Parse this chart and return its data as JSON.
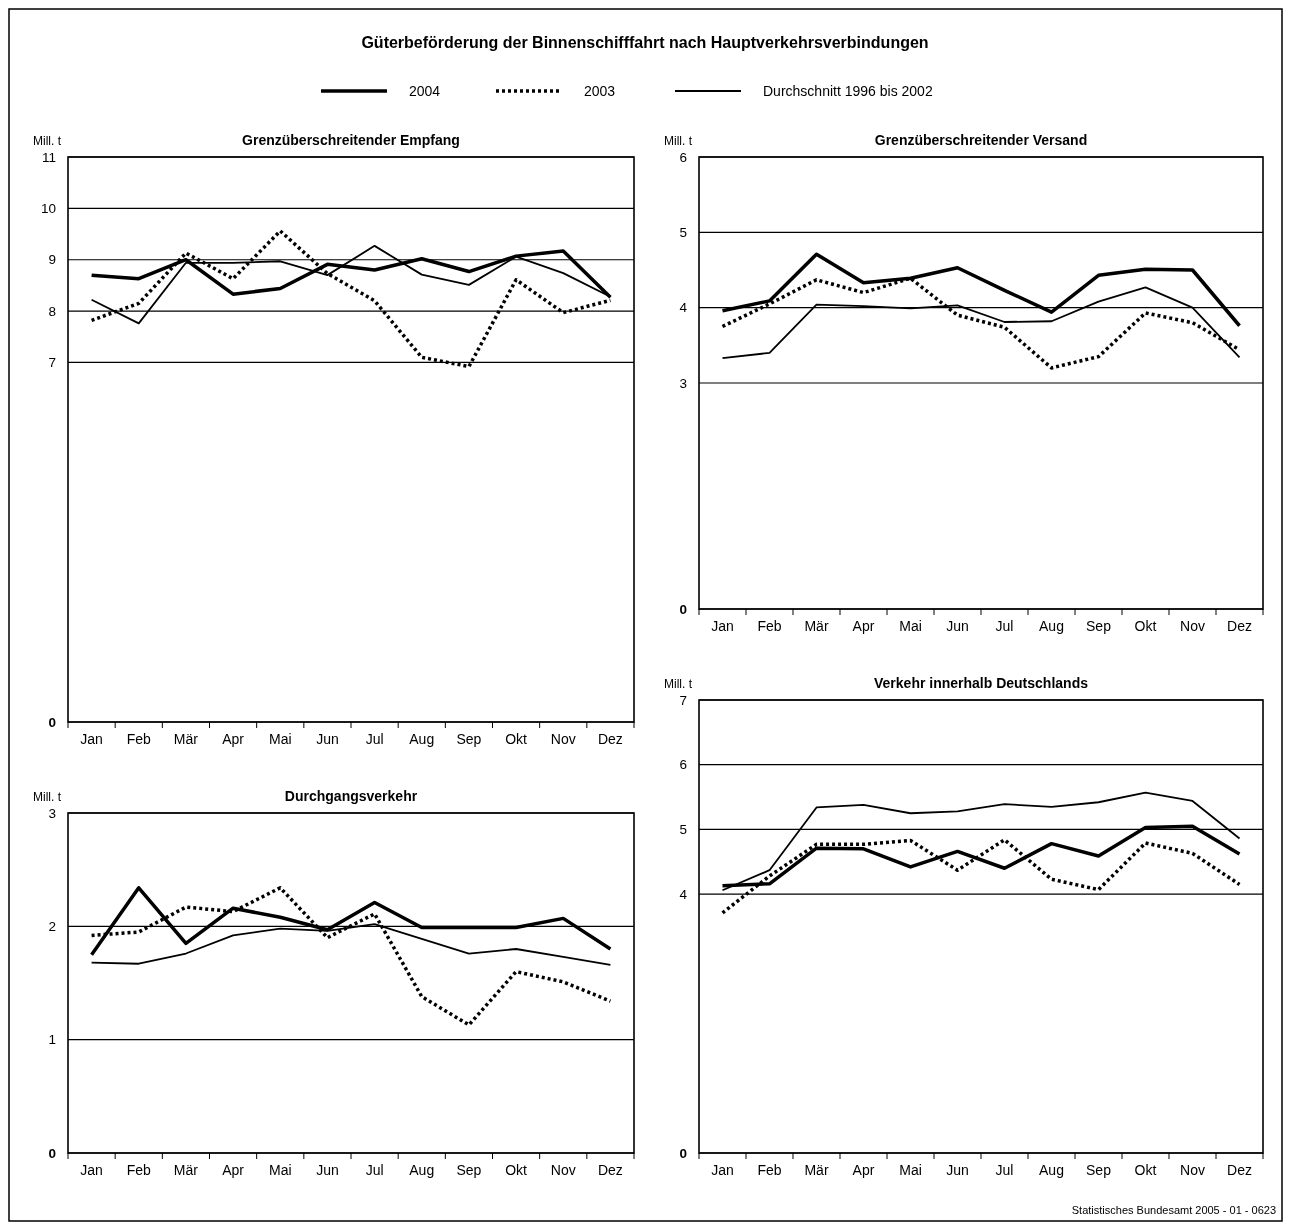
{
  "chart_data": [
    {
      "type": "line",
      "title": "Grenzüberschreitender Empfang",
      "ylabel": "Mill. t",
      "annotations": [
        "Güterbeförderung der Binnenschifffahrt nach Hauptverkehrsverbindungen",
        "Statistisches Bundesamt 2005 - 01 - 0623"
      ],
      "legend": "top",
      "grid": "y",
      "categories": [
        "Jan",
        "Feb",
        "Mär",
        "Apr",
        "Mai",
        "Jun",
        "Jul",
        "Aug",
        "Sep",
        "Okt",
        "Nov",
        "Dez"
      ],
      "ylim": [
        0,
        11
      ],
      "yticks": [
        0,
        7,
        8,
        9,
        10,
        11
      ],
      "series": [
        {
          "name": "2004",
          "color": "#000000",
          "line_style": "solid",
          "values": [
            8.7,
            8.63,
            9.0,
            8.33,
            8.44,
            8.91,
            8.8,
            9.02,
            8.77,
            9.07,
            9.17,
            8.27
          ]
        },
        {
          "name": "2003",
          "color": "#000000",
          "line_style": "dotted",
          "values": [
            7.82,
            8.15,
            9.13,
            8.63,
            9.56,
            8.73,
            8.2,
            7.1,
            6.92,
            8.61,
            7.97,
            8.21
          ]
        },
        {
          "name": "Durchschnitt 1996 bis 2002",
          "color": "#000000",
          "line_style": "solid",
          "values": [
            8.22,
            7.76,
            8.94,
            8.94,
            8.97,
            8.7,
            9.27,
            8.71,
            8.51,
            9.06,
            8.74,
            8.28
          ]
        }
      ]
    },
    {
      "type": "line",
      "title": "Grenzüberschreitender Versand",
      "ylabel": "Mill. t",
      "grid": "y",
      "categories": [
        "Jan",
        "Feb",
        "Mär",
        "Apr",
        "Mai",
        "Jun",
        "Jul",
        "Aug",
        "Sep",
        "Okt",
        "Nov",
        "Dez"
      ],
      "ylim": [
        0,
        6
      ],
      "yticks": [
        0,
        3,
        4,
        5,
        6
      ],
      "series": [
        {
          "color": "#000000",
          "line_style": "solid",
          "values": [
            3.96,
            4.09,
            4.71,
            4.33,
            4.39,
            4.53,
            4.23,
            3.94,
            4.43,
            4.51,
            4.5,
            3.76
          ]
        },
        {
          "color": "#000000",
          "line_style": "dotted",
          "values": [
            3.75,
            4.05,
            4.37,
            4.2,
            4.39,
            3.9,
            3.74,
            3.2,
            3.35,
            3.93,
            3.8,
            3.44
          ]
        },
        {
          "color": "#000000",
          "line_style": "solid",
          "values": [
            3.33,
            3.4,
            4.04,
            4.02,
            3.99,
            4.03,
            3.81,
            3.82,
            4.08,
            4.27,
            4.0,
            3.34
          ]
        }
      ]
    },
    {
      "type": "line",
      "title": "Durchgangsverkehr",
      "ylabel": "Mill. t",
      "grid": "y",
      "categories": [
        "Jan",
        "Feb",
        "Mär",
        "Apr",
        "Mai",
        "Jun",
        "Jul",
        "Aug",
        "Sep",
        "Okt",
        "Nov",
        "Dez"
      ],
      "ylim": [
        0,
        3
      ],
      "yticks": [
        0,
        1,
        2,
        3
      ],
      "series": [
        {
          "color": "#000000",
          "line_style": "solid",
          "values": [
            1.75,
            2.34,
            1.85,
            2.16,
            2.08,
            1.97,
            2.21,
            1.99,
            1.99,
            1.99,
            2.07,
            1.8
          ]
        },
        {
          "color": "#000000",
          "line_style": "dotted",
          "values": [
            1.92,
            1.95,
            2.17,
            2.13,
            2.34,
            1.9,
            2.11,
            1.38,
            1.13,
            1.6,
            1.51,
            1.34
          ]
        },
        {
          "color": "#000000",
          "line_style": "solid",
          "values": [
            1.68,
            1.67,
            1.76,
            1.92,
            1.98,
            1.96,
            2.02,
            1.89,
            1.76,
            1.8,
            1.73,
            1.66
          ]
        }
      ]
    },
    {
      "type": "line",
      "title": "Verkehr innerhalb Deutschlands",
      "ylabel": "Mill. t",
      "grid": "y",
      "categories": [
        "Jan",
        "Feb",
        "Mär",
        "Apr",
        "Mai",
        "Jun",
        "Jul",
        "Aug",
        "Sep",
        "Okt",
        "Nov",
        "Dez"
      ],
      "ylim": [
        0,
        7
      ],
      "yticks": [
        0,
        4,
        5,
        6,
        7
      ],
      "series": [
        {
          "color": "#000000",
          "line_style": "solid",
          "values": [
            4.13,
            4.16,
            4.71,
            4.7,
            4.42,
            4.66,
            4.4,
            4.78,
            4.59,
            5.03,
            5.05,
            4.62
          ]
        },
        {
          "color": "#000000",
          "line_style": "dotted",
          "values": [
            3.71,
            4.28,
            4.77,
            4.77,
            4.83,
            4.37,
            4.84,
            4.23,
            4.07,
            4.79,
            4.63,
            4.15
          ]
        },
        {
          "color": "#000000",
          "line_style": "solid",
          "values": [
            4.06,
            4.37,
            5.34,
            5.38,
            5.25,
            5.28,
            5.39,
            5.35,
            5.42,
            5.57,
            5.44,
            4.86
          ]
        }
      ]
    }
  ]
}
